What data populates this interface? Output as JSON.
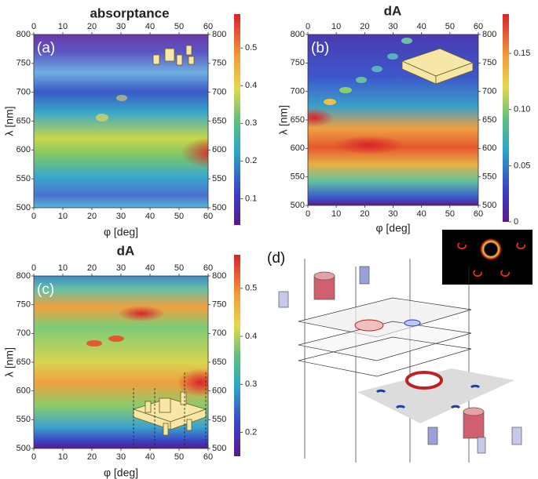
{
  "chart_data": [
    {
      "type": "heatmap",
      "title": "absorptance",
      "panel_label": "(a)",
      "xlabel": "φ [deg]",
      "ylabel": "λ [nm]",
      "xlim": [
        0,
        60
      ],
      "xticks": [
        0,
        10,
        20,
        30,
        40,
        50,
        60
      ],
      "ylim": [
        500,
        800
      ],
      "yticks": [
        500,
        550,
        600,
        650,
        700,
        750,
        800
      ],
      "clim": [
        0.03,
        0.59
      ],
      "cticks": [
        0.1,
        0.2,
        0.3,
        0.4,
        0.5
      ]
    },
    {
      "type": "heatmap",
      "title": "dA",
      "panel_label": "(b)",
      "xlabel": "φ [deg]",
      "ylabel": "λ [nm]",
      "xlim": [
        0,
        60
      ],
      "xticks": [
        0,
        10,
        20,
        30,
        40,
        50,
        60
      ],
      "ylim": [
        500,
        800
      ],
      "yticks": [
        500,
        550,
        600,
        650,
        700,
        750,
        800
      ],
      "clim": [
        0,
        0.185
      ],
      "cticks": [
        0,
        0.05,
        {
          "value": 0.1,
          "label": "0.10"
        },
        0.15
      ]
    },
    {
      "type": "heatmap",
      "title": "dA",
      "panel_label": "(c)",
      "xlabel": "φ [deg]",
      "ylabel": "λ [nm]",
      "xlim": [
        0,
        60
      ],
      "xticks": [
        0,
        10,
        20,
        30,
        40,
        50,
        60
      ],
      "ylim": [
        500,
        800
      ],
      "yticks": [
        500,
        550,
        600,
        650,
        700,
        750,
        800
      ],
      "clim": [
        0.15,
        0.57
      ],
      "cticks": [
        0.2,
        0.3,
        0.4,
        0.5
      ]
    }
  ],
  "diagram": {
    "panel_label": "(d)"
  }
}
